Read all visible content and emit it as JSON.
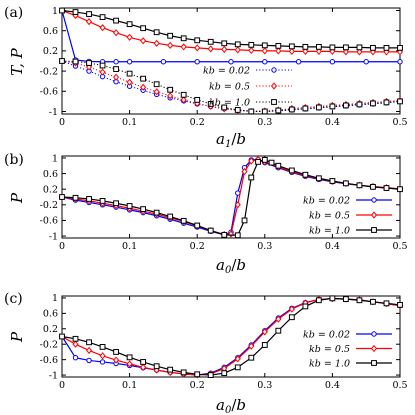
{
  "chart_data": [
    {
      "panel": "(a)",
      "type": "line",
      "xlabel": "a1/b",
      "ylabel": "T, P",
      "xlim": [
        0,
        0.5
      ],
      "ylim": [
        -1.05,
        1.05
      ],
      "xticks": [
        "0",
        "0.1",
        "0.2",
        "0.3",
        "0.4",
        "0.5"
      ],
      "yticks": [
        "-1",
        "-0.6",
        "-0.2",
        "0.2",
        "0.6",
        "1"
      ],
      "legend": "center-right",
      "legend_style": "dotted",
      "series": [
        {
          "name": "kb = 0.02",
          "quantity": "T",
          "style": "solid",
          "marker": "circle",
          "color": "#0000ff",
          "x": [
            0,
            0.02,
            0.04,
            0.06,
            0.08,
            0.1,
            0.15,
            0.2,
            0.25,
            0.3,
            0.35,
            0.4,
            0.45,
            0.5
          ],
          "y": [
            1,
            0.02,
            -0.01,
            -0.015,
            -0.015,
            -0.015,
            -0.015,
            -0.015,
            -0.015,
            -0.015,
            -0.015,
            -0.015,
            -0.015,
            -0.015
          ]
        },
        {
          "name": "kb = 0.5",
          "quantity": "T",
          "style": "solid",
          "marker": "diamond",
          "color": "#ff0000",
          "x": [
            0,
            0.02,
            0.04,
            0.06,
            0.08,
            0.1,
            0.12,
            0.14,
            0.16,
            0.18,
            0.2,
            0.22,
            0.24,
            0.26,
            0.28,
            0.3,
            0.32,
            0.34,
            0.36,
            0.38,
            0.4,
            0.42,
            0.44,
            0.46,
            0.48,
            0.5
          ],
          "y": [
            1,
            0.9,
            0.78,
            0.66,
            0.56,
            0.47,
            0.4,
            0.35,
            0.31,
            0.28,
            0.26,
            0.24,
            0.23,
            0.22,
            0.21,
            0.2,
            0.2,
            0.19,
            0.19,
            0.19,
            0.19,
            0.18,
            0.18,
            0.18,
            0.18,
            0.18
          ]
        },
        {
          "name": "kb = 1.0",
          "quantity": "T",
          "style": "solid",
          "marker": "square",
          "color": "#000000",
          "x": [
            0,
            0.02,
            0.04,
            0.06,
            0.08,
            0.1,
            0.12,
            0.14,
            0.16,
            0.18,
            0.2,
            0.22,
            0.24,
            0.26,
            0.28,
            0.3,
            0.32,
            0.34,
            0.36,
            0.38,
            0.4,
            0.42,
            0.44,
            0.46,
            0.48,
            0.5
          ],
          "y": [
            1,
            0.97,
            0.93,
            0.87,
            0.8,
            0.73,
            0.65,
            0.57,
            0.5,
            0.45,
            0.41,
            0.38,
            0.35,
            0.33,
            0.32,
            0.31,
            0.3,
            0.29,
            0.28,
            0.28,
            0.27,
            0.27,
            0.27,
            0.26,
            0.26,
            0.26
          ]
        },
        {
          "name": "kb = 0.02",
          "quantity": "P",
          "style": "dotted",
          "marker": "circle",
          "color": "#0000ff",
          "x": [
            0,
            0.02,
            0.04,
            0.06,
            0.08,
            0.1,
            0.12,
            0.14,
            0.16,
            0.18,
            0.2,
            0.22,
            0.24,
            0.26,
            0.28,
            0.3,
            0.32,
            0.34,
            0.36,
            0.38,
            0.4,
            0.42,
            0.44,
            0.46,
            0.48,
            0.5
          ],
          "y": [
            0,
            -0.1,
            -0.2,
            -0.31,
            -0.41,
            -0.5,
            -0.58,
            -0.66,
            -0.73,
            -0.79,
            -0.85,
            -0.9,
            -0.94,
            -0.97,
            -0.99,
            -1.0,
            -0.99,
            -0.97,
            -0.95,
            -0.93,
            -0.91,
            -0.89,
            -0.87,
            -0.85,
            -0.83,
            -0.8
          ]
        },
        {
          "name": "kb = 0.5",
          "quantity": "P",
          "style": "dotted",
          "marker": "diamond",
          "color": "#ff0000",
          "x": [
            0,
            0.02,
            0.04,
            0.06,
            0.08,
            0.1,
            0.12,
            0.14,
            0.16,
            0.18,
            0.2,
            0.22,
            0.24,
            0.26,
            0.28,
            0.3,
            0.32,
            0.34,
            0.36,
            0.38,
            0.4,
            0.42,
            0.44,
            0.46,
            0.48,
            0.5
          ],
          "y": [
            0,
            -0.04,
            -0.12,
            -0.22,
            -0.32,
            -0.42,
            -0.52,
            -0.61,
            -0.69,
            -0.77,
            -0.84,
            -0.9,
            -0.95,
            -0.98,
            -1.0,
            -0.99,
            -0.97,
            -0.94,
            -0.92,
            -0.9,
            -0.88,
            -0.86,
            -0.84,
            -0.82,
            -0.8,
            -0.78
          ]
        },
        {
          "name": "kb = 1.0",
          "quantity": "P",
          "style": "dotted",
          "marker": "square",
          "color": "#000000",
          "x": [
            0,
            0.02,
            0.04,
            0.06,
            0.08,
            0.1,
            0.12,
            0.14,
            0.16,
            0.18,
            0.2,
            0.22,
            0.24,
            0.26,
            0.28,
            0.3,
            0.32,
            0.34,
            0.36,
            0.38,
            0.4,
            0.42,
            0.44,
            0.46,
            0.48,
            0.5
          ],
          "y": [
            0,
            -0.01,
            -0.04,
            -0.09,
            -0.16,
            -0.25,
            -0.35,
            -0.46,
            -0.57,
            -0.67,
            -0.77,
            -0.85,
            -0.92,
            -0.97,
            -1.0,
            -1.0,
            -0.98,
            -0.96,
            -0.94,
            -0.92,
            -0.9,
            -0.88,
            -0.86,
            -0.84,
            -0.82,
            -0.8
          ]
        }
      ]
    },
    {
      "panel": "(b)",
      "type": "line",
      "xlabel": "a0/b",
      "ylabel": "P",
      "xlim": [
        0,
        0.5
      ],
      "ylim": [
        -1.05,
        1.05
      ],
      "xticks": [
        "0",
        "0.1",
        "0.2",
        "0.3",
        "0.4",
        "0.5"
      ],
      "yticks": [
        "-1",
        "-0.6",
        "-0.2",
        "0.2",
        "0.6",
        "1"
      ],
      "legend": "center-right",
      "legend_style": "solid",
      "series": [
        {
          "name": "kb = 0.02",
          "style": "solid",
          "marker": "circle",
          "color": "#0000ff",
          "x": [
            0,
            0.02,
            0.04,
            0.06,
            0.08,
            0.1,
            0.12,
            0.14,
            0.16,
            0.18,
            0.2,
            0.22,
            0.24,
            0.25,
            0.26,
            0.27,
            0.28,
            0.29,
            0.3,
            0.32,
            0.34,
            0.36,
            0.38,
            0.4,
            0.42,
            0.44,
            0.46,
            0.48,
            0.5
          ],
          "y": [
            0,
            -0.08,
            -0.14,
            -0.2,
            -0.26,
            -0.33,
            -0.4,
            -0.48,
            -0.57,
            -0.67,
            -0.77,
            -0.88,
            -0.97,
            -0.9,
            0.1,
            0.75,
            0.95,
            0.96,
            0.88,
            0.75,
            0.63,
            0.53,
            0.45,
            0.39,
            0.34,
            0.3,
            0.26,
            0.23,
            0.2
          ]
        },
        {
          "name": "kb = 0.5",
          "style": "solid",
          "marker": "diamond",
          "color": "#ff0000",
          "x": [
            0,
            0.02,
            0.04,
            0.06,
            0.08,
            0.1,
            0.12,
            0.14,
            0.16,
            0.18,
            0.2,
            0.22,
            0.24,
            0.25,
            0.26,
            0.27,
            0.28,
            0.29,
            0.3,
            0.32,
            0.34,
            0.36,
            0.38,
            0.4,
            0.42,
            0.44,
            0.46,
            0.48,
            0.5
          ],
          "y": [
            0,
            -0.05,
            -0.1,
            -0.16,
            -0.22,
            -0.29,
            -0.36,
            -0.44,
            -0.53,
            -0.63,
            -0.74,
            -0.86,
            -0.96,
            -0.95,
            -0.2,
            0.65,
            0.92,
            0.96,
            0.9,
            0.77,
            0.65,
            0.55,
            0.47,
            0.4,
            0.35,
            0.3,
            0.27,
            0.24,
            0.21
          ]
        },
        {
          "name": "kb = 1.0",
          "style": "solid",
          "marker": "square",
          "color": "#000000",
          "x": [
            0,
            0.02,
            0.04,
            0.06,
            0.08,
            0.1,
            0.12,
            0.14,
            0.16,
            0.18,
            0.2,
            0.22,
            0.24,
            0.26,
            0.27,
            0.28,
            0.29,
            0.3,
            0.31,
            0.32,
            0.34,
            0.36,
            0.38,
            0.4,
            0.42,
            0.44,
            0.46,
            0.48,
            0.5
          ],
          "y": [
            0,
            -0.02,
            -0.05,
            -0.1,
            -0.16,
            -0.23,
            -0.31,
            -0.4,
            -0.5,
            -0.61,
            -0.73,
            -0.86,
            -0.97,
            -0.98,
            -0.6,
            0.5,
            0.9,
            0.95,
            0.88,
            0.8,
            0.68,
            0.57,
            0.48,
            0.41,
            0.35,
            0.3,
            0.26,
            0.23,
            0.2
          ]
        }
      ]
    },
    {
      "panel": "(c)",
      "type": "line",
      "xlabel": "a0/b",
      "ylabel": "P",
      "xlim": [
        0,
        0.5
      ],
      "ylim": [
        -1.05,
        1.05
      ],
      "xticks": [
        "0",
        "0.1",
        "0.2",
        "0.3",
        "0.4",
        "0.5"
      ],
      "yticks": [
        "-1",
        "-0.6",
        "-0.2",
        "0.2",
        "0.6",
        "1"
      ],
      "legend": "center-right",
      "legend_style": "solid",
      "series": [
        {
          "name": "kb = 0.02",
          "style": "solid",
          "marker": "circle",
          "color": "#0000ff",
          "x": [
            0,
            0.02,
            0.04,
            0.06,
            0.08,
            0.1,
            0.12,
            0.14,
            0.16,
            0.18,
            0.2,
            0.22,
            0.24,
            0.26,
            0.28,
            0.3,
            0.32,
            0.34,
            0.36,
            0.38,
            0.4,
            0.42,
            0.44,
            0.46,
            0.48,
            0.5
          ],
          "y": [
            0,
            -0.55,
            -0.62,
            -0.66,
            -0.7,
            -0.75,
            -0.81,
            -0.87,
            -0.93,
            -0.97,
            -1.0,
            -0.95,
            -0.8,
            -0.55,
            -0.22,
            0.15,
            0.48,
            0.73,
            0.88,
            0.96,
            0.98,
            0.97,
            0.95,
            0.9,
            0.85,
            0.8
          ]
        },
        {
          "name": "kb = 0.5",
          "style": "solid",
          "marker": "diamond",
          "color": "#ff0000",
          "x": [
            0,
            0.02,
            0.04,
            0.06,
            0.08,
            0.1,
            0.12,
            0.14,
            0.16,
            0.18,
            0.2,
            0.22,
            0.24,
            0.26,
            0.28,
            0.3,
            0.32,
            0.34,
            0.36,
            0.38,
            0.4,
            0.42,
            0.44,
            0.46,
            0.48,
            0.5
          ],
          "y": [
            0,
            -0.2,
            -0.36,
            -0.5,
            -0.61,
            -0.71,
            -0.8,
            -0.87,
            -0.93,
            -0.97,
            -1.0,
            -0.97,
            -0.83,
            -0.58,
            -0.25,
            0.12,
            0.45,
            0.71,
            0.87,
            0.96,
            0.98,
            0.97,
            0.95,
            0.9,
            0.85,
            0.8
          ]
        },
        {
          "name": "kb = 1.0",
          "style": "solid",
          "marker": "square",
          "color": "#000000",
          "x": [
            0,
            0.02,
            0.04,
            0.06,
            0.08,
            0.1,
            0.12,
            0.14,
            0.16,
            0.18,
            0.2,
            0.22,
            0.24,
            0.26,
            0.28,
            0.3,
            0.32,
            0.34,
            0.36,
            0.38,
            0.4,
            0.42,
            0.44,
            0.46,
            0.48,
            0.5
          ],
          "y": [
            0,
            -0.06,
            -0.15,
            -0.27,
            -0.4,
            -0.54,
            -0.66,
            -0.77,
            -0.86,
            -0.93,
            -0.98,
            -1.0,
            -0.95,
            -0.8,
            -0.55,
            -0.22,
            0.15,
            0.5,
            0.78,
            0.94,
            0.99,
            0.97,
            0.94,
            0.9,
            0.86,
            0.82
          ]
        }
      ]
    }
  ]
}
